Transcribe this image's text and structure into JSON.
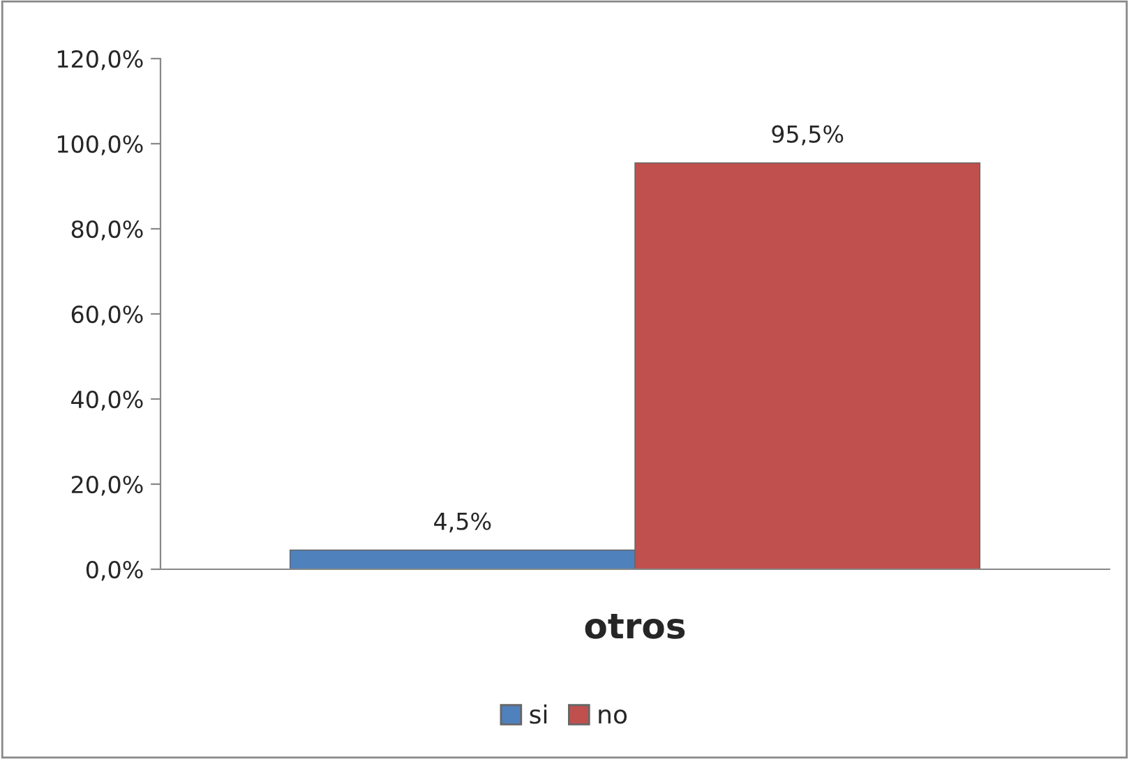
{
  "chart_data": {
    "type": "bar",
    "categories": [
      "otros"
    ],
    "series": [
      {
        "name": "si",
        "color": "#4f81bd",
        "values": [
          4.5
        ],
        "value_labels": [
          "4,5%"
        ]
      },
      {
        "name": "no",
        "color": "#c0504d",
        "values": [
          95.5
        ],
        "value_labels": [
          "95,5%"
        ]
      }
    ],
    "ylim": [
      0,
      120
    ],
    "yticks": [
      {
        "value": 0,
        "label": "0,0%"
      },
      {
        "value": 20,
        "label": "20,0%"
      },
      {
        "value": 40,
        "label": "40,0%"
      },
      {
        "value": 60,
        "label": "60,0%"
      },
      {
        "value": 80,
        "label": "80,0%"
      },
      {
        "value": 100,
        "label": "100,0%"
      },
      {
        "value": 120,
        "label": "120,0%"
      }
    ],
    "grid": false,
    "legend": "bottom"
  }
}
